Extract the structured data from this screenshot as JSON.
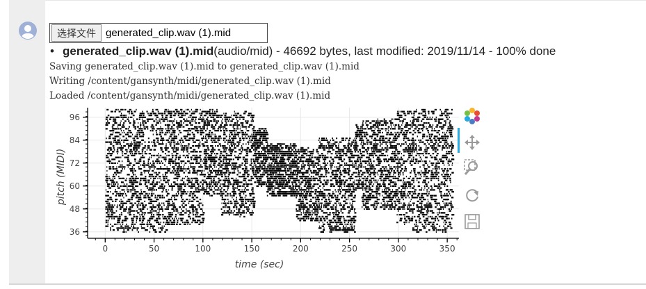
{
  "file_input": {
    "button_label": "选择文件",
    "file_name": "generated_clip.wav (1).mid"
  },
  "upload_status": {
    "file_name": "generated_clip.wav (1).mid",
    "details": "(audio/mid) - 46692 bytes, last modified: 2019/11/14 - 100% done"
  },
  "log_lines": [
    "Saving generated_clip.wav (1).mid to generated_clip.wav (1).mid",
    "Writing /content/gansynth/midi/generated_clip.wav (1).mid",
    "Loaded /content/gansynth/midi/generated_clip.wav (1).mid"
  ],
  "toolbar": {
    "items": [
      {
        "name": "bokeh-logo-icon"
      },
      {
        "name": "pan-icon"
      },
      {
        "name": "box-zoom-icon"
      },
      {
        "name": "reset-icon"
      },
      {
        "name": "save-icon"
      }
    ],
    "accent": "#26aae1"
  },
  "chart_data": {
    "type": "scatter",
    "title": "",
    "xlabel": "time (sec)",
    "ylabel": "pitch (MIDI)",
    "xlim": [
      -18,
      362
    ],
    "ylim": [
      33,
      101
    ],
    "x_ticks": [
      0,
      50,
      100,
      150,
      200,
      250,
      300,
      350
    ],
    "y_ticks": [
      36,
      48,
      60,
      72,
      84,
      96
    ],
    "grid": true,
    "mark_color": "#000000",
    "segments": [
      {
        "t0": 0,
        "t1": 12,
        "p0": 37,
        "p1": 100
      },
      {
        "t0": 12,
        "t1": 62,
        "p0": 36,
        "p1": 100
      },
      {
        "t0": 62,
        "t1": 100,
        "p0": 40,
        "p1": 100
      },
      {
        "t0": 100,
        "t1": 118,
        "p0": 55,
        "p1": 100
      },
      {
        "t0": 118,
        "t1": 152,
        "p0": 44,
        "p1": 99
      },
      {
        "t0": 152,
        "t1": 165,
        "p0": 60,
        "p1": 90
      },
      {
        "t0": 165,
        "t1": 195,
        "p0": 55,
        "p1": 82
      },
      {
        "t0": 195,
        "t1": 218,
        "p0": 42,
        "p1": 80
      },
      {
        "t0": 218,
        "t1": 255,
        "p0": 36,
        "p1": 85
      },
      {
        "t0": 255,
        "t1": 262,
        "p0": 58,
        "p1": 92
      },
      {
        "t0": 262,
        "t1": 298,
        "p0": 48,
        "p1": 95
      },
      {
        "t0": 298,
        "t1": 313,
        "p0": 40,
        "p1": 100
      },
      {
        "t0": 313,
        "t1": 355,
        "p0": 36,
        "p1": 100
      }
    ]
  }
}
